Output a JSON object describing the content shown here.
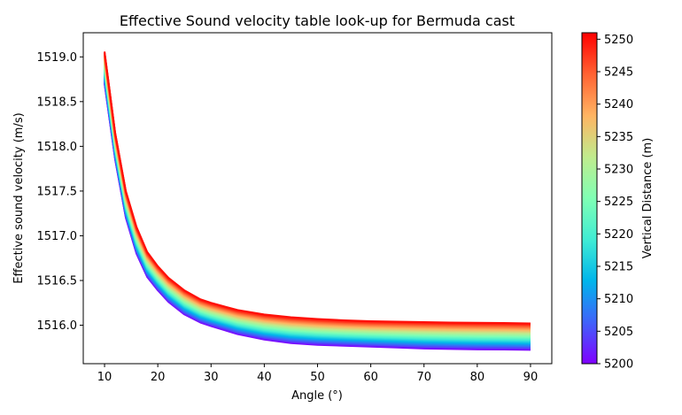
{
  "chart_data": {
    "type": "line",
    "title": "Effective Sound velocity table look-up for Bermuda cast",
    "xlabel": "Angle (°)",
    "ylabel": "Effective sound velocity (m/s)",
    "xlim": [
      6,
      94
    ],
    "ylim": [
      1515.57,
      1519.27
    ],
    "xticks": [
      10,
      20,
      30,
      40,
      50,
      60,
      70,
      80,
      90
    ],
    "yticks": [
      1516.0,
      1516.5,
      1517.0,
      1517.5,
      1518.0,
      1518.5,
      1519.0
    ],
    "ytick_labels": [
      "1516.0",
      "1516.5",
      "1517.0",
      "1517.5",
      "1518.0",
      "1518.5",
      "1519.0"
    ],
    "grid": false,
    "colormap": "rainbow",
    "series_family": {
      "parameter": "Vertical Distance (m)",
      "range": [
        5200,
        5250
      ],
      "count": 51,
      "angles": [
        10,
        12,
        14,
        16,
        18,
        20,
        22,
        25,
        28,
        30,
        35,
        40,
        45,
        50,
        55,
        60,
        65,
        70,
        75,
        80,
        85,
        90
      ],
      "velocity_at_min_distance": [
        1518.7,
        1517.85,
        1517.2,
        1516.8,
        1516.54,
        1516.39,
        1516.26,
        1516.12,
        1516.03,
        1515.99,
        1515.9,
        1515.84,
        1515.8,
        1515.78,
        1515.77,
        1515.76,
        1515.75,
        1515.74,
        1515.735,
        1515.73,
        1515.728,
        1515.725
      ],
      "velocity_at_max_distance": [
        1519.06,
        1518.15,
        1517.5,
        1517.1,
        1516.82,
        1516.66,
        1516.53,
        1516.39,
        1516.29,
        1516.25,
        1516.17,
        1516.12,
        1516.09,
        1516.07,
        1516.055,
        1516.045,
        1516.04,
        1516.035,
        1516.03,
        1516.027,
        1516.025,
        1516.02
      ]
    },
    "colorbar": {
      "label": "Vertical Distance (m)",
      "ticks": [
        5200,
        5205,
        5210,
        5215,
        5220,
        5225,
        5230,
        5235,
        5240,
        5245,
        5250
      ],
      "range": [
        5200,
        5251
      ],
      "colors": [
        "#8000ff",
        "#4062fa",
        "#00b5eb",
        "#40ecd4",
        "#80ffb4",
        "#c0eb8d",
        "#ffb462",
        "#ff6232",
        "#ff0000"
      ]
    }
  }
}
